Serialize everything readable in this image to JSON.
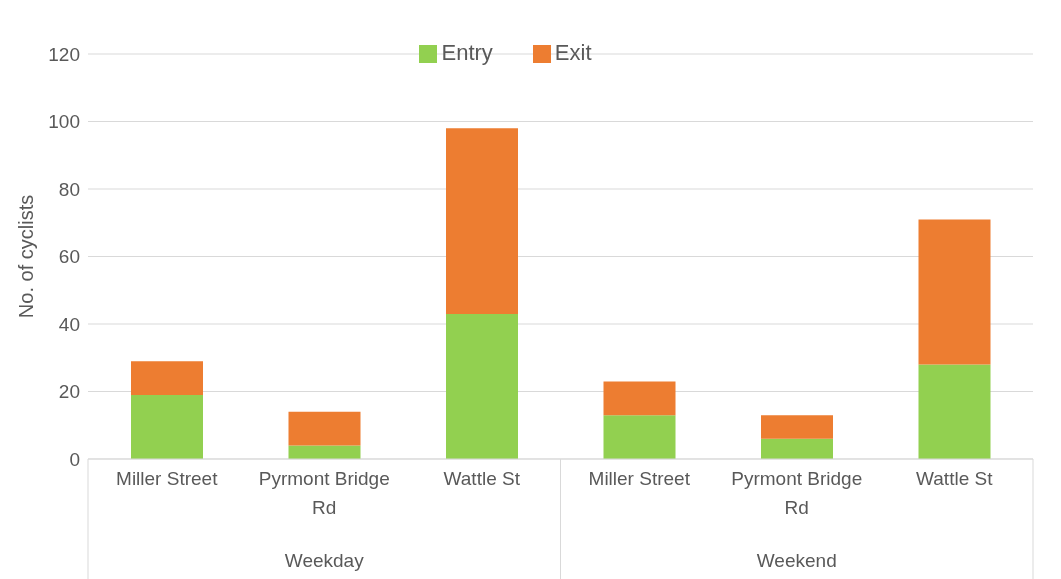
{
  "chart_data": {
    "type": "bar",
    "stacked": true,
    "ylabel": "No. of cyclists",
    "categories": [
      "Miller Street",
      "Pyrmont Bridge Rd",
      "Wattle St",
      "Miller Street",
      "Pyrmont Bridge Rd",
      "Wattle St"
    ],
    "series": [
      {
        "name": "Entry",
        "color": "#92d050",
        "values": [
          19,
          4,
          43,
          13,
          6,
          28
        ]
      },
      {
        "name": "Exit",
        "color": "#ed7d31",
        "values": [
          10,
          10,
          55,
          10,
          7,
          43
        ]
      }
    ],
    "annotations": [
      "Weekday",
      "Weekend"
    ],
    "ylim": [
      0,
      120
    ],
    "yticks": [
      0,
      20,
      40,
      60,
      80,
      100,
      120
    ],
    "grid": "y",
    "legend": "top"
  }
}
